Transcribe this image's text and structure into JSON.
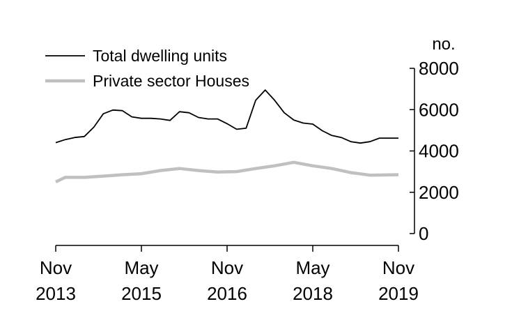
{
  "chart_data": {
    "type": "line",
    "title": "",
    "xlabel": "",
    "ylabel": "no.",
    "ylim": [
      0,
      8000
    ],
    "yticks": [
      0,
      2000,
      4000,
      6000,
      8000
    ],
    "x_tick_labels": [
      {
        "month": "Nov",
        "year": "2013",
        "date": "2013-11"
      },
      {
        "month": "May",
        "year": "2015",
        "date": "2015-05"
      },
      {
        "month": "Nov",
        "year": "2016",
        "date": "2016-11"
      },
      {
        "month": "May",
        "year": "2018",
        "date": "2018-05"
      },
      {
        "month": "Nov",
        "year": "2019",
        "date": "2019-11"
      }
    ],
    "x_range": [
      "2013-11",
      "2019-11"
    ],
    "grid": false,
    "legend_position": "top-left",
    "series": [
      {
        "name": "Total dwelling units",
        "color": "#000000",
        "points": [
          [
            "2013-11",
            4400
          ],
          [
            "2014-01",
            4550
          ],
          [
            "2014-03",
            4650
          ],
          [
            "2014-05",
            4700
          ],
          [
            "2014-07",
            5150
          ],
          [
            "2014-09",
            5800
          ],
          [
            "2014-11",
            5980
          ],
          [
            "2015-01",
            5950
          ],
          [
            "2015-03",
            5650
          ],
          [
            "2015-05",
            5580
          ],
          [
            "2015-07",
            5580
          ],
          [
            "2015-09",
            5550
          ],
          [
            "2015-11",
            5480
          ],
          [
            "2016-01",
            5900
          ],
          [
            "2016-03",
            5850
          ],
          [
            "2016-05",
            5620
          ],
          [
            "2016-07",
            5550
          ],
          [
            "2016-09",
            5550
          ],
          [
            "2016-11",
            5320
          ],
          [
            "2017-01",
            5050
          ],
          [
            "2017-03",
            5100
          ],
          [
            "2017-05",
            6450
          ],
          [
            "2017-07",
            6950
          ],
          [
            "2017-09",
            6450
          ],
          [
            "2017-11",
            5850
          ],
          [
            "2018-01",
            5500
          ],
          [
            "2018-03",
            5350
          ],
          [
            "2018-05",
            5300
          ],
          [
            "2018-07",
            4980
          ],
          [
            "2018-09",
            4750
          ],
          [
            "2018-11",
            4650
          ],
          [
            "2019-01",
            4450
          ],
          [
            "2019-03",
            4380
          ],
          [
            "2019-05",
            4450
          ],
          [
            "2019-07",
            4620
          ],
          [
            "2019-11",
            4620
          ]
        ]
      },
      {
        "name": "Private sector Houses",
        "color": "#c0c0c0",
        "points": [
          [
            "2013-11",
            2500
          ],
          [
            "2014-01",
            2720
          ],
          [
            "2014-05",
            2720
          ],
          [
            "2014-09",
            2780
          ],
          [
            "2015-01",
            2850
          ],
          [
            "2015-05",
            2900
          ],
          [
            "2015-09",
            3050
          ],
          [
            "2016-01",
            3150
          ],
          [
            "2016-05",
            3050
          ],
          [
            "2016-09",
            2980
          ],
          [
            "2017-01",
            3000
          ],
          [
            "2017-05",
            3150
          ],
          [
            "2017-09",
            3280
          ],
          [
            "2018-01",
            3450
          ],
          [
            "2018-05",
            3280
          ],
          [
            "2018-09",
            3150
          ],
          [
            "2019-01",
            2950
          ],
          [
            "2019-05",
            2830
          ],
          [
            "2019-11",
            2850
          ]
        ]
      }
    ]
  }
}
